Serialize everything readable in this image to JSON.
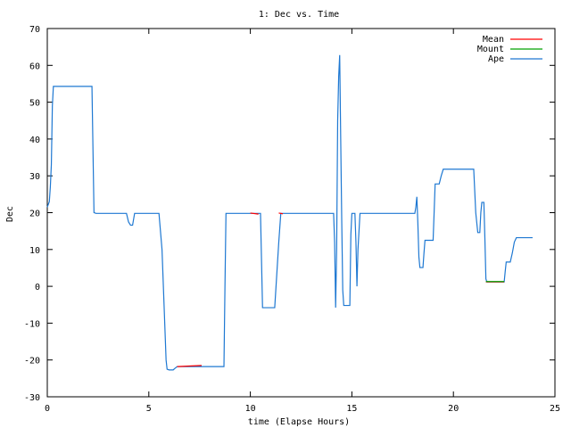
{
  "chart_data": {
    "type": "line",
    "title": "1: Dec vs. Time",
    "xlabel": "time (Elapse Hours)",
    "ylabel": "Dec",
    "xlim": [
      0,
      25
    ],
    "ylim": [
      -30,
      70
    ],
    "xticks": [
      0,
      5,
      10,
      15,
      20,
      25
    ],
    "yticks": [
      -30,
      -20,
      -10,
      0,
      10,
      20,
      30,
      40,
      50,
      60,
      70
    ],
    "grid": false,
    "legend_position": "top-right",
    "series": [
      {
        "name": "Mean",
        "color": "#ff0000",
        "points": [
          [
            10.0,
            19.9
          ],
          [
            10.4,
            19.6
          ],
          [
            11.4,
            19.9
          ],
          [
            11.6,
            19.7
          ],
          [
            21.6,
            1.2
          ],
          [
            22.5,
            1.2
          ],
          [
            6.4,
            -21.8
          ],
          [
            7.6,
            -21.5
          ]
        ]
      },
      {
        "name": "Mount",
        "color": "#00a000",
        "points": [
          [
            21.6,
            1.3
          ],
          [
            22.5,
            1.3
          ]
        ]
      },
      {
        "name": "Ape",
        "color": "#1e78d2",
        "points": [
          [
            0.0,
            21.5
          ],
          [
            0.1,
            23
          ],
          [
            0.15,
            27
          ],
          [
            0.2,
            33
          ],
          [
            0.25,
            49
          ],
          [
            0.3,
            54.3
          ],
          [
            2.2,
            54.3
          ],
          [
            2.3,
            20
          ],
          [
            2.4,
            19.8
          ],
          [
            3.9,
            19.8
          ],
          [
            4.0,
            17.5
          ],
          [
            4.1,
            16.6
          ],
          [
            4.2,
            16.6
          ],
          [
            4.3,
            19.8
          ],
          [
            5.5,
            19.8
          ],
          [
            5.65,
            10
          ],
          [
            5.75,
            -5
          ],
          [
            5.85,
            -20
          ],
          [
            5.9,
            -22.5
          ],
          [
            6.0,
            -22.7
          ],
          [
            6.2,
            -22.7
          ],
          [
            6.3,
            -22.2
          ],
          [
            6.4,
            -21.8
          ],
          [
            7.0,
            -21.8
          ],
          [
            7.6,
            -21.8
          ],
          [
            8.7,
            -21.8
          ],
          [
            8.75,
            0
          ],
          [
            8.8,
            19.8
          ],
          [
            10.4,
            19.8
          ],
          [
            10.5,
            19.8
          ],
          [
            10.6,
            -5.8
          ],
          [
            11.2,
            -5.8
          ],
          [
            11.4,
            12
          ],
          [
            11.5,
            19.8
          ],
          [
            14.1,
            19.8
          ],
          [
            14.15,
            12
          ],
          [
            14.2,
            -5.8
          ],
          [
            14.25,
            10
          ],
          [
            14.3,
            45
          ],
          [
            14.35,
            57
          ],
          [
            14.4,
            62.8
          ],
          [
            14.45,
            40
          ],
          [
            14.5,
            18
          ],
          [
            14.55,
            -1
          ],
          [
            14.6,
            -5.2
          ],
          [
            14.7,
            -5.2
          ],
          [
            14.9,
            -5.2
          ],
          [
            14.95,
            14
          ],
          [
            15.0,
            19.8
          ],
          [
            15.15,
            19.8
          ],
          [
            15.2,
            12
          ],
          [
            15.25,
            0
          ],
          [
            15.3,
            10
          ],
          [
            15.4,
            19.8
          ],
          [
            18.1,
            19.8
          ],
          [
            18.15,
            21.5
          ],
          [
            18.2,
            24.3
          ],
          [
            18.25,
            17
          ],
          [
            18.3,
            8
          ],
          [
            18.35,
            5.1
          ],
          [
            18.5,
            5.1
          ],
          [
            18.55,
            9
          ],
          [
            18.6,
            12.5
          ],
          [
            19.0,
            12.5
          ],
          [
            19.05,
            20
          ],
          [
            19.1,
            27.8
          ],
          [
            19.3,
            27.8
          ],
          [
            19.4,
            30
          ],
          [
            19.5,
            31.8
          ],
          [
            21.0,
            31.8
          ],
          [
            21.1,
            20
          ],
          [
            21.2,
            14.6
          ],
          [
            21.3,
            14.6
          ],
          [
            21.35,
            20
          ],
          [
            21.4,
            22.8
          ],
          [
            21.5,
            22.8
          ],
          [
            21.55,
            13
          ],
          [
            21.6,
            2
          ],
          [
            21.65,
            1.2
          ],
          [
            22.5,
            1.2
          ],
          [
            22.55,
            4
          ],
          [
            22.6,
            6.6
          ],
          [
            22.8,
            6.6
          ],
          [
            22.9,
            9
          ],
          [
            23.0,
            12
          ],
          [
            23.1,
            13.2
          ],
          [
            23.9,
            13.2
          ]
        ]
      }
    ]
  }
}
